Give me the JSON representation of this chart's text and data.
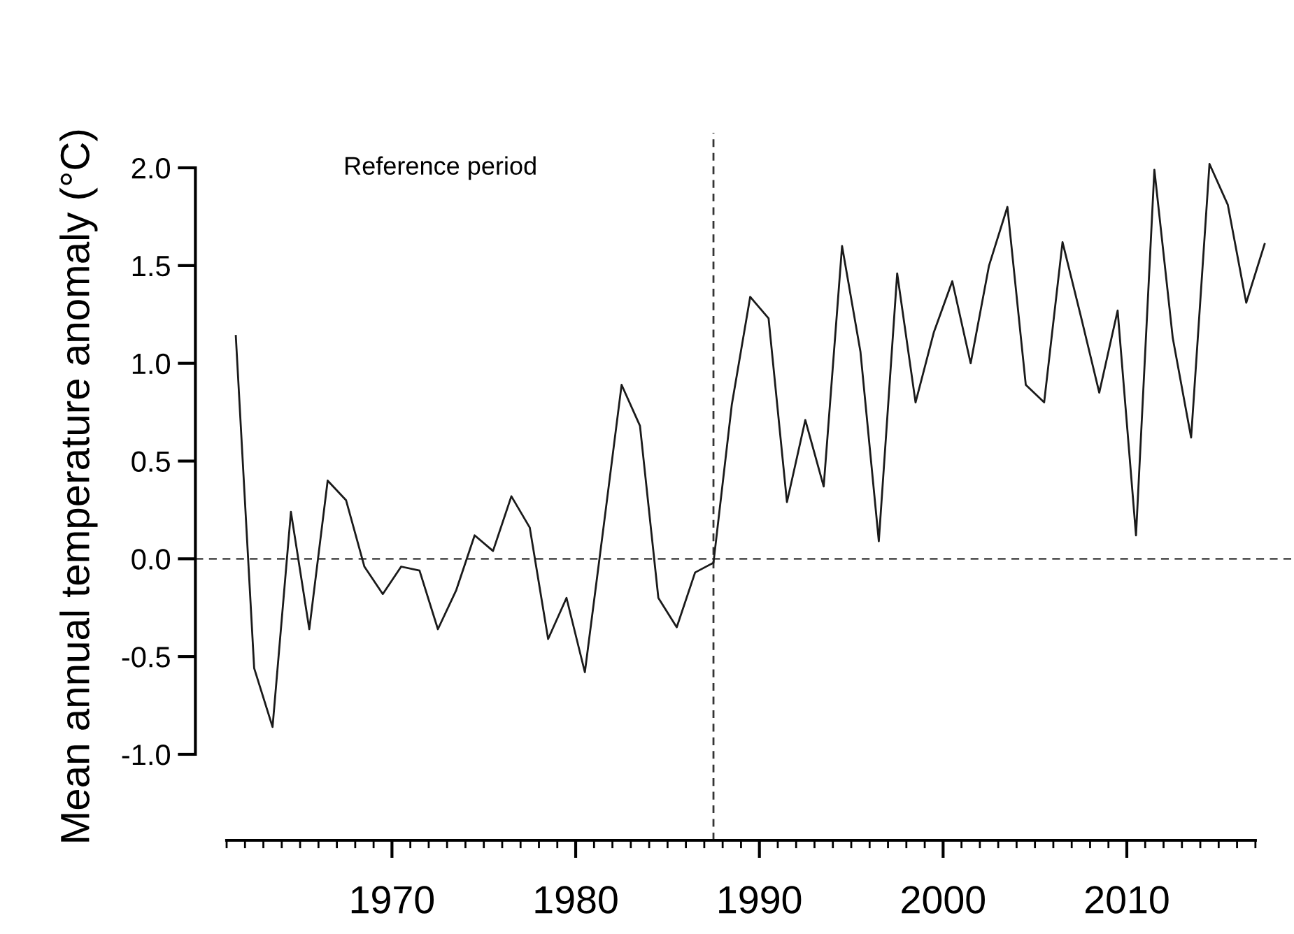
{
  "chart_data": {
    "type": "line",
    "ylabel": "Mean annual temperature anomaly (°C)",
    "x": [
      1961.5,
      1962.5,
      1963.5,
      1964.5,
      1965.5,
      1966.5,
      1967.5,
      1968.5,
      1969.5,
      1970.5,
      1971.5,
      1972.5,
      1973.5,
      1974.5,
      1975.5,
      1976.5,
      1977.5,
      1978.5,
      1979.5,
      1980.5,
      1981.5,
      1982.5,
      1983.5,
      1984.5,
      1985.5,
      1986.5,
      1987.5,
      1988.5,
      1989.5,
      1990.5,
      1991.5,
      1992.5,
      1993.5,
      1994.5,
      1995.5,
      1996.5,
      1997.5,
      1998.5,
      1999.5,
      2000.5,
      2001.5,
      2002.5,
      2003.5,
      2004.5,
      2005.5,
      2006.5,
      2007.5,
      2008.5,
      2009.5,
      2010.5,
      2011.5,
      2012.5,
      2013.5,
      2014.5,
      2015.5,
      2016.5,
      2017.5
    ],
    "series": [
      {
        "color": "#1a1a1a",
        "values": [
          1.14,
          -0.56,
          -0.86,
          0.24,
          -0.36,
          0.4,
          0.3,
          -0.04,
          -0.18,
          -0.04,
          -0.06,
          -0.36,
          -0.16,
          0.12,
          0.04,
          0.32,
          0.16,
          -0.41,
          -0.2,
          -0.58,
          0.15,
          0.89,
          0.68,
          -0.2,
          -0.35,
          -0.07,
          -0.02,
          0.79,
          1.34,
          1.23,
          0.29,
          0.71,
          0.37,
          1.6,
          1.06,
          0.09,
          1.46,
          0.8,
          1.16,
          1.42,
          1.0,
          1.5,
          1.8,
          0.89,
          0.8,
          1.62,
          1.24,
          0.85,
          1.27,
          0.12,
          1.99,
          1.13,
          0.62,
          2.02,
          1.81,
          1.31,
          1.61
        ]
      }
    ],
    "xlim": [
      1959.3,
      2019.1
    ],
    "ylim": [
      -1.44,
      2.18
    ],
    "xticks": [
      {
        "value": 1961,
        "label": null
      },
      {
        "value": 1962,
        "label": null
      },
      {
        "value": 1963,
        "label": null
      },
      {
        "value": 1964,
        "label": null
      },
      {
        "value": 1965,
        "label": null
      },
      {
        "value": 1966,
        "label": null
      },
      {
        "value": 1967,
        "label": null
      },
      {
        "value": 1968,
        "label": null
      },
      {
        "value": 1969,
        "label": null
      },
      1970,
      {
        "value": 1971,
        "label": null
      },
      {
        "value": 1972,
        "label": null
      },
      {
        "value": 1973,
        "label": null
      },
      {
        "value": 1974,
        "label": null
      },
      {
        "value": 1975,
        "label": null
      },
      {
        "value": 1976,
        "label": null
      },
      {
        "value": 1977,
        "label": null
      },
      {
        "value": 1978,
        "label": null
      },
      {
        "value": 1979,
        "label": null
      },
      1980,
      {
        "value": 1981,
        "label": null
      },
      {
        "value": 1982,
        "label": null
      },
      {
        "value": 1983,
        "label": null
      },
      {
        "value": 1984,
        "label": null
      },
      {
        "value": 1985,
        "label": null
      },
      {
        "value": 1986,
        "label": null
      },
      {
        "value": 1987,
        "label": null
      },
      {
        "value": 1988,
        "label": null
      },
      {
        "value": 1989,
        "label": null
      },
      1990,
      {
        "value": 1991,
        "label": null
      },
      {
        "value": 1992,
        "label": null
      },
      {
        "value": 1993,
        "label": null
      },
      {
        "value": 1994,
        "label": null
      },
      {
        "value": 1995,
        "label": null
      },
      {
        "value": 1996,
        "label": null
      },
      {
        "value": 1997,
        "label": null
      },
      {
        "value": 1998,
        "label": null
      },
      {
        "value": 1999,
        "label": null
      },
      2000,
      {
        "value": 2001,
        "label": null
      },
      {
        "value": 2002,
        "label": null
      },
      {
        "value": 2003,
        "label": null
      },
      {
        "value": 2004,
        "label": null
      },
      {
        "value": 2005,
        "label": null
      },
      {
        "value": 2006,
        "label": null
      },
      {
        "value": 2007,
        "label": null
      },
      {
        "value": 2008,
        "label": null
      },
      {
        "value": 2009,
        "label": null
      },
      2010,
      {
        "value": 2011,
        "label": null
      },
      {
        "value": 2012,
        "label": null
      },
      {
        "value": 2013,
        "label": null
      },
      {
        "value": 2014,
        "label": null
      },
      {
        "value": 2015,
        "label": null
      },
      {
        "value": 2016,
        "label": null
      },
      {
        "value": 2017,
        "label": null
      }
    ],
    "yticks": [
      {
        "value": -1,
        "label": "-1.0"
      },
      {
        "value": -0.5,
        "label": "-0.5"
      },
      {
        "value": 0,
        "label": "0.0"
      },
      {
        "value": 0.5,
        "label": "0.5"
      },
      {
        "value": 1,
        "label": "1.0"
      },
      {
        "value": 1.5,
        "label": "1.5"
      },
      {
        "value": 2,
        "label": "2.0"
      }
    ],
    "ref_lines": [
      {
        "axis": "y",
        "value": 0,
        "color": "#555555",
        "line_style": "dashed"
      },
      {
        "axis": "x",
        "value": 1987.5,
        "color": "#333333",
        "line_style": "dashed"
      }
    ],
    "annotations": [
      "Reference period"
    ],
    "grid": false,
    "line_style": "solid",
    "marker": "none"
  }
}
